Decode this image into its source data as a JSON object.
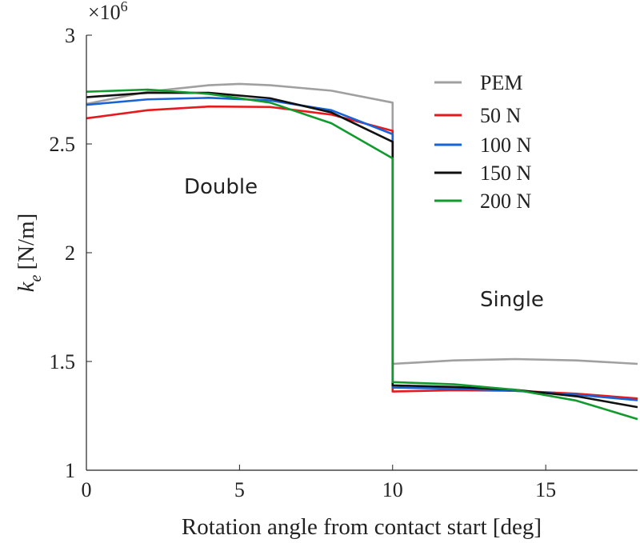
{
  "chart_data": {
    "type": "line",
    "title": "",
    "xlabel": "Rotation angle from contact start [deg]",
    "ylabel_main": "k",
    "ylabel_sub": "e",
    "ylabel_unit": "[N/m]",
    "y_multiplier_base": "×10",
    "y_multiplier_exp": "6",
    "xlim": [
      0,
      18
    ],
    "ylim": [
      1,
      3
    ],
    "xticks": [
      0,
      5,
      10,
      15
    ],
    "yticks": [
      1,
      1.5,
      2,
      2.5,
      3
    ],
    "xtick_labels": [
      "0",
      "5",
      "10",
      "15"
    ],
    "ytick_labels": [
      "1",
      "1.5",
      "2",
      "2.5",
      "3"
    ],
    "grid": false,
    "legend_position": "top-right",
    "annotations": [
      {
        "text": "Double"
      },
      {
        "text": "Single"
      }
    ],
    "series": [
      {
        "name": "PEM",
        "color": "#a0a0a0",
        "x": [
          0,
          2,
          4,
          5,
          6,
          8,
          10,
          10,
          12,
          14,
          16,
          18
        ],
        "y": [
          2.684,
          2.74,
          2.77,
          2.776,
          2.77,
          2.745,
          2.69,
          1.489,
          1.505,
          1.511,
          1.505,
          1.489
        ]
      },
      {
        "name": "50 N",
        "color": "#e8191c",
        "x": [
          0,
          2,
          4,
          6,
          8,
          10,
          10,
          12,
          14,
          16,
          18
        ],
        "y": [
          2.618,
          2.655,
          2.672,
          2.67,
          2.635,
          2.56,
          1.362,
          1.368,
          1.365,
          1.352,
          1.33
        ]
      },
      {
        "name": "100 N",
        "color": "#1763d8",
        "x": [
          0,
          2,
          4,
          6,
          8,
          10,
          10,
          12,
          14,
          16,
          18
        ],
        "y": [
          2.68,
          2.705,
          2.712,
          2.7,
          2.655,
          2.545,
          1.38,
          1.375,
          1.365,
          1.347,
          1.322
        ]
      },
      {
        "name": "150 N",
        "color": "#111111",
        "x": [
          0,
          2,
          4,
          6,
          8,
          10,
          10,
          12,
          14,
          16,
          18
        ],
        "y": [
          2.715,
          2.735,
          2.735,
          2.71,
          2.645,
          2.51,
          1.39,
          1.383,
          1.37,
          1.34,
          1.29
        ]
      },
      {
        "name": "200 N",
        "color": "#119a2e",
        "x": [
          0,
          2,
          4,
          6,
          8,
          10,
          10,
          12,
          14,
          16,
          18
        ],
        "y": [
          2.74,
          2.75,
          2.73,
          2.69,
          2.595,
          2.434,
          1.405,
          1.395,
          1.37,
          1.32,
          1.235
        ]
      }
    ]
  }
}
